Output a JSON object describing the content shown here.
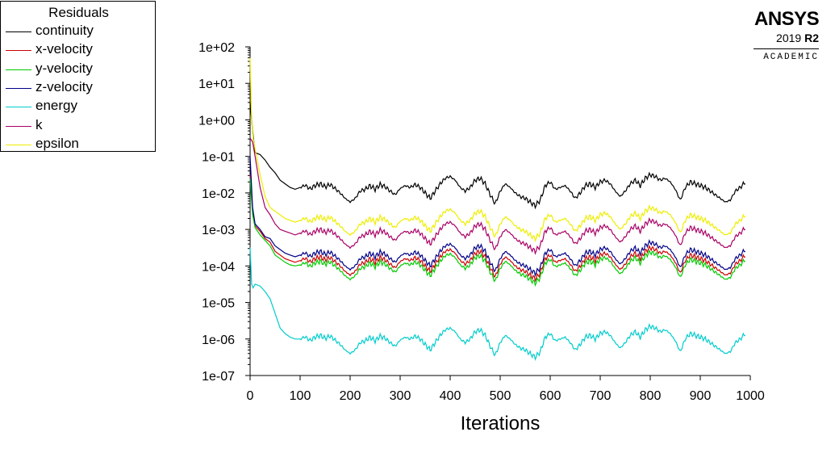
{
  "chart_data": {
    "type": "line",
    "title": "",
    "xlabel": "Iterations",
    "ylabel": "",
    "yscale": "log",
    "xlim": [
      0,
      1000
    ],
    "ylim_exp": [
      -7,
      2
    ],
    "x_ticks": [
      "0",
      "100",
      "200",
      "300",
      "400",
      "500",
      "600",
      "700",
      "800",
      "900",
      "1000"
    ],
    "y_ticks": [
      "1e-07",
      "1e-06",
      "1e-05",
      "1e-04",
      "1e-03",
      "1e-02",
      "1e-01",
      "1e+00",
      "1e+01",
      "1e+02"
    ],
    "legend_title": "Residuals",
    "legend_position": "top-left",
    "base_x": [
      0,
      5,
      10,
      20,
      30,
      40,
      50,
      60,
      70,
      80,
      90,
      100,
      110,
      120,
      130,
      140,
      150,
      160,
      170,
      180,
      190,
      200,
      210,
      220,
      230,
      240,
      250,
      260,
      270,
      280,
      290,
      300,
      310,
      320,
      330,
      340,
      350,
      360,
      370,
      380,
      390,
      400,
      410,
      420,
      430,
      440,
      450,
      460,
      470,
      480,
      490,
      500,
      510,
      520,
      530,
      540,
      550,
      560,
      570,
      580,
      590,
      600,
      610,
      620,
      630,
      640,
      650,
      660,
      670,
      680,
      690,
      700,
      710,
      720,
      730,
      740,
      750,
      760,
      770,
      780,
      790,
      800,
      810,
      820,
      830,
      840,
      850,
      860,
      870,
      880,
      890,
      900,
      910,
      920,
      930,
      940,
      950,
      960,
      970,
      980,
      990,
      1000
    ],
    "base_y": [
      0,
      0,
      0,
      0,
      0,
      0,
      0,
      0,
      0,
      0,
      0,
      0,
      0.06,
      -0.04,
      0.05,
      0.1,
      0.02,
      0.08,
      -0.03,
      -0.15,
      -0.3,
      -0.4,
      -0.3,
      -0.1,
      -0.05,
      0.05,
      -0.05,
      0.08,
      0.02,
      -0.1,
      -0.2,
      -0.03,
      0.05,
      0.0,
      0.08,
      0.0,
      -0.15,
      -0.3,
      -0.1,
      0.1,
      0.25,
      0.3,
      0.2,
      0.0,
      -0.1,
      0.0,
      0.2,
      0.25,
      0.1,
      -0.2,
      -0.45,
      -0.1,
      0.1,
      0.0,
      -0.15,
      -0.25,
      -0.3,
      -0.4,
      -0.5,
      -0.35,
      0.05,
      0.15,
      -0.05,
      0.0,
      0.05,
      -0.1,
      -0.3,
      -0.15,
      0.05,
      0.1,
      0.0,
      0.15,
      0.2,
      0.1,
      -0.1,
      -0.25,
      -0.1,
      0.1,
      0.2,
      0.05,
      0.25,
      0.35,
      0.3,
      0.2,
      0.25,
      0.15,
      -0.05,
      -0.35,
      0.0,
      0.15,
      0.1,
      0.05,
      0.0,
      -0.1,
      -0.2,
      -0.3,
      -0.4,
      -0.35,
      -0.1,
      0.0,
      0.15
    ],
    "series": [
      {
        "name": "continuity",
        "color": "#000000",
        "offset": -1.85,
        "early_x": [
          0,
          5,
          10,
          20,
          30,
          40,
          50,
          60,
          70,
          80,
          90,
          100
        ],
        "early_y": [
          0.5,
          -0.3,
          -0.9,
          -0.95,
          -1.1,
          -1.3,
          -1.45,
          -1.65,
          -1.75,
          -1.85,
          -1.9,
          -1.85
        ]
      },
      {
        "name": "x-velocity",
        "color": "#cc0000",
        "offset": -3.85,
        "early_x": [
          0,
          5,
          10,
          20,
          30,
          40,
          50,
          60,
          70,
          80,
          90,
          100
        ],
        "early_y": [
          -1.5,
          -2.5,
          -2.9,
          -3.05,
          -3.25,
          -3.35,
          -3.6,
          -3.7,
          -3.8,
          -3.85,
          -3.9,
          -3.85
        ]
      },
      {
        "name": "y-velocity",
        "color": "#00cc00",
        "offset": -3.97,
        "early_x": [
          0,
          5,
          10,
          20,
          30,
          40,
          50,
          60,
          70,
          80,
          90,
          100
        ],
        "early_y": [
          -1.6,
          -2.6,
          -2.95,
          -3.15,
          -3.3,
          -3.45,
          -3.7,
          -3.8,
          -3.9,
          -3.97,
          -4.0,
          -3.97
        ]
      },
      {
        "name": "z-velocity",
        "color": "#000088",
        "offset": -3.7,
        "early_x": [
          0,
          5,
          10,
          20,
          30,
          40,
          50,
          60,
          70,
          80,
          90,
          100
        ],
        "early_y": [
          -1.0,
          -2.4,
          -2.85,
          -3.0,
          -3.2,
          -3.25,
          -3.45,
          -3.55,
          -3.65,
          -3.7,
          -3.75,
          -3.7
        ]
      },
      {
        "name": "energy",
        "color": "#00cccc",
        "offset": -6.0,
        "early_x": [
          0,
          3,
          6,
          10,
          20,
          30,
          40,
          50,
          60,
          70,
          80,
          90,
          100
        ],
        "early_y": [
          -3.5,
          -4.5,
          -4.6,
          -4.5,
          -4.55,
          -4.7,
          -4.9,
          -5.3,
          -5.7,
          -5.85,
          -5.95,
          -6.0,
          -6.0
        ]
      },
      {
        "name": "k",
        "color": "#aa0066",
        "offset": -3.1,
        "early_x": [
          0,
          5,
          10,
          20,
          30,
          40,
          50,
          60,
          70,
          80,
          90,
          100
        ],
        "early_y": [
          -0.5,
          -0.6,
          -1.0,
          -1.85,
          -2.4,
          -2.6,
          -2.85,
          -3.0,
          -3.05,
          -3.1,
          -3.15,
          -3.1
        ]
      },
      {
        "name": "epsilon",
        "color": "#eeee00",
        "offset": -2.75,
        "early_x": [
          0,
          3,
          6,
          10,
          20,
          30,
          40,
          50,
          60,
          70,
          80,
          90,
          100
        ],
        "early_y": [
          1.7,
          0.0,
          -0.5,
          -0.8,
          -1.5,
          -2.1,
          -2.4,
          -2.5,
          -2.6,
          -2.7,
          -2.75,
          -2.8,
          -2.75
        ]
      }
    ]
  },
  "logo": {
    "brand": "ANSYS",
    "year": "2019",
    "release": "R2",
    "edition": "ACADEMIC"
  }
}
